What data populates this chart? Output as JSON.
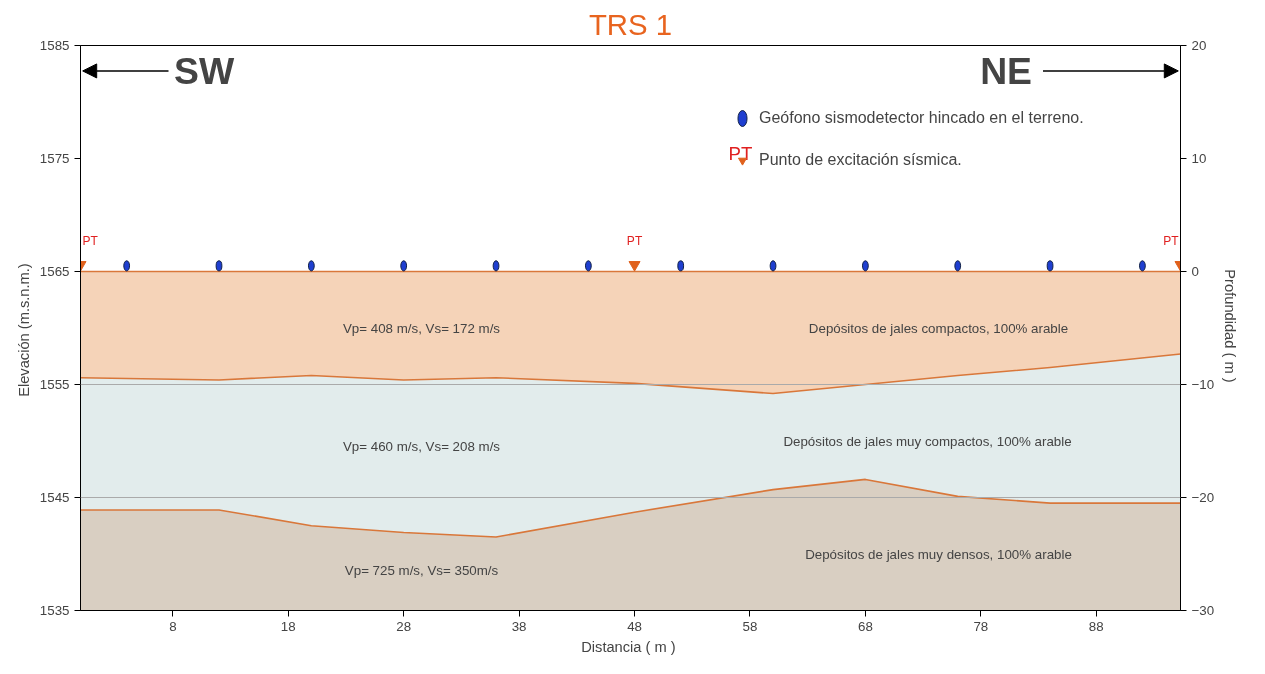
{
  "chart_data": {
    "type": "area",
    "title": "TRS 1",
    "xlabel": "Distancia  ( m )",
    "ylabel": "Elevación  (m.s.n.m.)",
    "y2label": "Profundidad  ( m )",
    "xlim": [
      0,
      95.3
    ],
    "xticks": [
      8,
      18,
      28,
      38,
      48,
      58,
      68,
      78,
      88
    ],
    "ylim": [
      1535,
      1585
    ],
    "yticks": [
      1535,
      1545,
      1555,
      1565,
      1575,
      1585
    ],
    "y2lim": [
      -30,
      20
    ],
    "y2ticks": [
      -30,
      -20,
      -10,
      0,
      10,
      20
    ],
    "grid": false,
    "legend": "top",
    "series": [
      {
        "color": "#f5d3b8",
        "x": [
          0,
          95.3
        ],
        "values": [
          1565,
          1565
        ]
      },
      {
        "color": "#e2ecec",
        "x": [
          0,
          12,
          20,
          28,
          36,
          48,
          60,
          68,
          76,
          84,
          95.3
        ],
        "values": [
          1555.6,
          1555.4,
          1555.8,
          1555.4,
          1555.6,
          1555.1,
          1554.2,
          1555.0,
          1555.8,
          1556.5,
          1557.7
        ]
      },
      {
        "color": "#d9cfc2",
        "x": [
          0,
          12,
          20,
          28,
          36,
          48,
          60,
          68,
          76,
          84,
          95.3
        ],
        "values": [
          1543.9,
          1543.9,
          1542.5,
          1541.9,
          1541.5,
          1543.7,
          1545.7,
          1546.6,
          1545.1,
          1544.5,
          1544.5
        ]
      },
      {
        "type": "scatter",
        "name": "Geófono sismodetector hincado en el terreno.",
        "color": "#1f3fd0",
        "marker": "circle",
        "x": [
          4,
          12,
          20,
          28,
          36,
          44,
          52,
          60,
          68,
          76,
          84,
          92
        ],
        "values": [
          1565.5,
          1565.5,
          1565.5,
          1565.5,
          1565.5,
          1565.5,
          1565.5,
          1565.5,
          1565.5,
          1565.5,
          1565.5,
          1565.5
        ]
      },
      {
        "type": "scatter",
        "name": "Punto de excitación sísmica.",
        "color": "#e0611c",
        "marker": "triangle",
        "x": [
          0,
          48,
          95.3
        ],
        "values": [
          1565.6,
          1565.6,
          1565.6
        ]
      }
    ],
    "ref_lines": [
      {
        "axis": "y",
        "value": 1555,
        "color": "#aaaaaa"
      },
      {
        "axis": "y",
        "value": 1545,
        "color": "#aaaaaa"
      }
    ],
    "annotations": [
      "SW",
      "NE",
      "PT",
      "PT",
      "PT",
      "PT",
      "Vp= 408 m/s, Vs= 172 m/s",
      "Depósitos de jales compactos, 100% arable",
      "Vp= 460 m/s, Vs= 208 m/s",
      "Depósitos de jales muy compactos, 100% arable",
      "Vp= 725 m/s, Vs= 350m/s",
      "Depósitos de jales muy densos, 100% arable"
    ]
  }
}
